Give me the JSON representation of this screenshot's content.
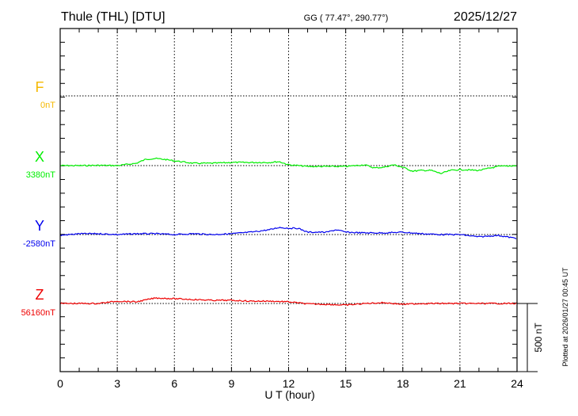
{
  "header": {
    "station": "Thule (THL)  [DTU]",
    "coords": "GG ( 77.47°, 290.77°)",
    "date": "2025/12/27"
  },
  "footer": {
    "plotted_at": "Plotted at 2026/01/27 00:45 UT",
    "scale_label": "500 nT"
  },
  "chart_data": {
    "type": "line",
    "xlabel": "U T (hour)",
    "xlim": [
      0,
      24
    ],
    "xticks": [
      "0",
      "3",
      "6",
      "9",
      "12",
      "15",
      "18",
      "21",
      "24"
    ],
    "scale_nT": 500,
    "grid": true,
    "series": [
      {
        "name": "F",
        "baseline_label": "0nT",
        "baseline": 0,
        "color": "#f5b800",
        "x": [],
        "y": []
      },
      {
        "name": "X",
        "baseline_label": "3380nT",
        "baseline": 3380,
        "color": "#00ee00",
        "x": [
          0,
          1,
          2,
          3,
          4,
          4.5,
          5,
          5.5,
          6,
          7,
          8,
          9,
          10,
          11,
          11.5,
          12,
          13,
          14,
          15,
          16,
          16.5,
          17,
          17.5,
          18,
          18.5,
          19,
          19.5,
          20,
          20.5,
          21,
          22,
          23,
          24
        ],
        "y": [
          3380,
          3380,
          3382,
          3380,
          3397,
          3426,
          3432,
          3425,
          3415,
          3397,
          3397,
          3403,
          3403,
          3403,
          3409,
          3386,
          3374,
          3374,
          3374,
          3386,
          3363,
          3368,
          3386,
          3368,
          3340,
          3345,
          3345,
          3322,
          3345,
          3351,
          3345,
          3374,
          3380
        ]
      },
      {
        "name": "Y",
        "baseline_label": "-2580nT",
        "baseline": -2580,
        "color": "#0000ee",
        "x": [
          0,
          1,
          2,
          3,
          4,
          5,
          6,
          7,
          8,
          9,
          10,
          11,
          11.5,
          12,
          12.5,
          13,
          14,
          14.5,
          15,
          16,
          17,
          18,
          19,
          20,
          21,
          22,
          23,
          24
        ],
        "y": [
          -2586,
          -2574,
          -2574,
          -2580,
          -2574,
          -2574,
          -2580,
          -2574,
          -2580,
          -2574,
          -2563,
          -2545,
          -2528,
          -2534,
          -2534,
          -2563,
          -2563,
          -2545,
          -2563,
          -2568,
          -2568,
          -2563,
          -2574,
          -2580,
          -2580,
          -2597,
          -2586,
          -2609
        ]
      },
      {
        "name": "Z",
        "baseline_label": "56160nT",
        "baseline": 56160,
        "color": "#ee0000",
        "x": [
          0,
          2,
          3,
          4,
          5,
          6,
          7,
          8,
          9,
          10,
          11,
          12,
          13,
          14,
          15,
          16,
          17,
          18,
          19,
          20,
          21,
          22,
          24
        ],
        "y": [
          56160,
          56160,
          56177,
          56172,
          56200,
          56195,
          56189,
          56183,
          56183,
          56177,
          56177,
          56172,
          56157,
          56154,
          56148,
          56160,
          56166,
          56154,
          56160,
          56160,
          56160,
          56160,
          56160
        ]
      }
    ]
  }
}
